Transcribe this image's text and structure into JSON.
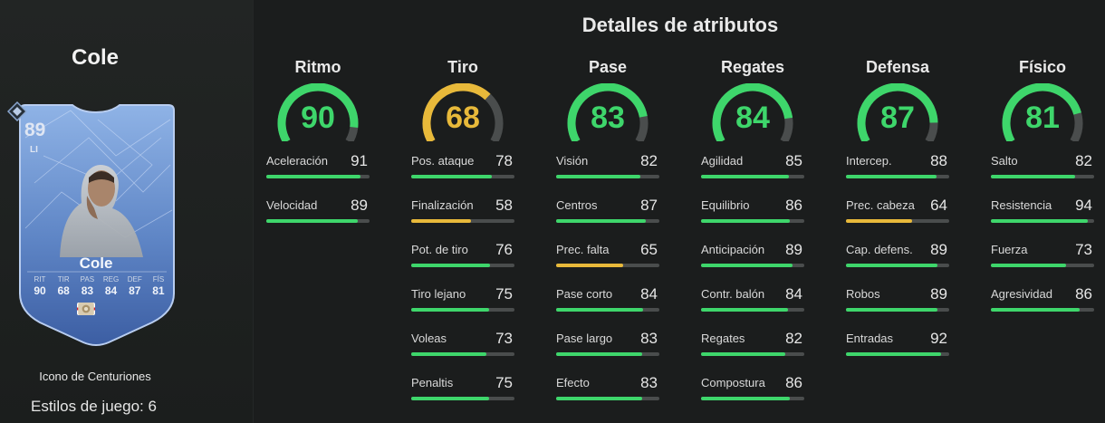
{
  "player": {
    "name": "Cole",
    "card": {
      "rating": "89",
      "position": "LI",
      "name": "Cole",
      "stats": [
        {
          "label": "RIT",
          "value": "90"
        },
        {
          "label": "TIR",
          "value": "68"
        },
        {
          "label": "PAS",
          "value": "83"
        },
        {
          "label": "REG",
          "value": "84"
        },
        {
          "label": "DEF",
          "value": "87"
        },
        {
          "label": "FÍS",
          "value": "81"
        }
      ]
    },
    "card_type": "Icono de Centuriones",
    "playstyles": "Estilos de juego: 6"
  },
  "panel_title": "Detalles de atributos",
  "colors": {
    "green": "#3ed66b",
    "yellow": "#e8b93a",
    "track": "#4a4d4d"
  },
  "categories": [
    {
      "title": "Ritmo",
      "value": 90,
      "stats": [
        {
          "label": "Aceleración",
          "value": 91
        },
        {
          "label": "Velocidad",
          "value": 89
        }
      ]
    },
    {
      "title": "Tiro",
      "value": 68,
      "stats": [
        {
          "label": "Pos. ataque",
          "value": 78
        },
        {
          "label": "Finalización",
          "value": 58
        },
        {
          "label": "Pot. de tiro",
          "value": 76
        },
        {
          "label": "Tiro lejano",
          "value": 75
        },
        {
          "label": "Voleas",
          "value": 73
        },
        {
          "label": "Penaltis",
          "value": 75
        }
      ]
    },
    {
      "title": "Pase",
      "value": 83,
      "stats": [
        {
          "label": "Visión",
          "value": 82
        },
        {
          "label": "Centros",
          "value": 87
        },
        {
          "label": "Prec. falta",
          "value": 65
        },
        {
          "label": "Pase corto",
          "value": 84
        },
        {
          "label": "Pase largo",
          "value": 83
        },
        {
          "label": "Efecto",
          "value": 83
        }
      ]
    },
    {
      "title": "Regates",
      "value": 84,
      "stats": [
        {
          "label": "Agilidad",
          "value": 85
        },
        {
          "label": "Equilibrio",
          "value": 86
        },
        {
          "label": "Anticipación",
          "value": 89
        },
        {
          "label": "Contr. balón",
          "value": 84
        },
        {
          "label": "Regates",
          "value": 82
        },
        {
          "label": "Compostura",
          "value": 86
        }
      ]
    },
    {
      "title": "Defensa",
      "value": 87,
      "stats": [
        {
          "label": "Intercep.",
          "value": 88
        },
        {
          "label": "Prec. cabeza",
          "value": 64
        },
        {
          "label": "Cap. defens.",
          "value": 89
        },
        {
          "label": "Robos",
          "value": 89
        },
        {
          "label": "Entradas",
          "value": 92
        }
      ]
    },
    {
      "title": "Físico",
      "value": 81,
      "stats": [
        {
          "label": "Salto",
          "value": 82
        },
        {
          "label": "Resistencia",
          "value": 94
        },
        {
          "label": "Fuerza",
          "value": 73
        },
        {
          "label": "Agresividad",
          "value": 86
        }
      ]
    }
  ]
}
